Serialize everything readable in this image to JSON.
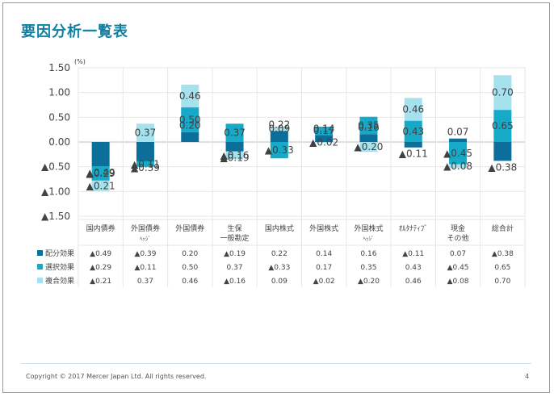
{
  "title": "要因分析一覧表",
  "footer": {
    "copyright": "Copyright © 2017 Mercer Japan Ltd. All rights reserved.",
    "page_number": "4"
  },
  "colors": {
    "haibun": "#0b6f9a",
    "sentaku": "#17a9c8",
    "fukugou": "#a6e1ee",
    "grid": "#e6e6e6",
    "title": "#0e7fa3"
  },
  "chart_data": {
    "type": "bar",
    "stacked": true,
    "unit_label": "(%)",
    "ylim": [
      -1.5,
      1.5
    ],
    "yticks": [
      "▲1.50",
      "▲1.00",
      "▲0.50",
      "0.00",
      "0.50",
      "1.00",
      "1.50"
    ],
    "ytick_values": [
      -1.5,
      -1.0,
      -0.5,
      0.0,
      0.5,
      1.0,
      1.5
    ],
    "categories": [
      "国内債券",
      "外国債券\nﾍｯｼﾞ",
      "外国債券",
      "生保\n一般勘定",
      "国内株式",
      "外国株式",
      "外国株式\nﾍｯｼﾞ",
      "ｵﾙﾀﾅﾃｨﾌﾞ",
      "現金\nその他",
      "総合計"
    ],
    "series": [
      {
        "name": "配分効果",
        "values": [
          -0.49,
          -0.39,
          0.2,
          -0.19,
          0.22,
          0.14,
          0.16,
          -0.11,
          0.07,
          -0.38
        ],
        "labels": [
          "▲0.49",
          "▲0.39",
          "0.20",
          "▲0.19",
          "0.22",
          "0.14",
          "0.16",
          "▲0.11",
          "0.07",
          "▲0.38"
        ]
      },
      {
        "name": "選択効果",
        "values": [
          -0.29,
          -0.11,
          0.5,
          0.37,
          -0.33,
          0.17,
          0.35,
          0.43,
          -0.45,
          0.65
        ],
        "labels": [
          "▲0.29",
          "▲0.11",
          "0.50",
          "0.37",
          "▲0.33",
          "0.17",
          "0.35",
          "0.43",
          "▲0.45",
          "0.65"
        ]
      },
      {
        "name": "複合効果",
        "values": [
          -0.21,
          0.37,
          0.46,
          -0.16,
          0.09,
          -0.02,
          -0.2,
          0.46,
          -0.08,
          0.7
        ],
        "labels": [
          "▲0.21",
          "0.37",
          "0.46",
          "▲0.16",
          "0.09",
          "▲0.02",
          "▲0.20",
          "0.46",
          "▲0.08",
          "0.70"
        ]
      }
    ],
    "grid": true,
    "legend": "table-below"
  }
}
